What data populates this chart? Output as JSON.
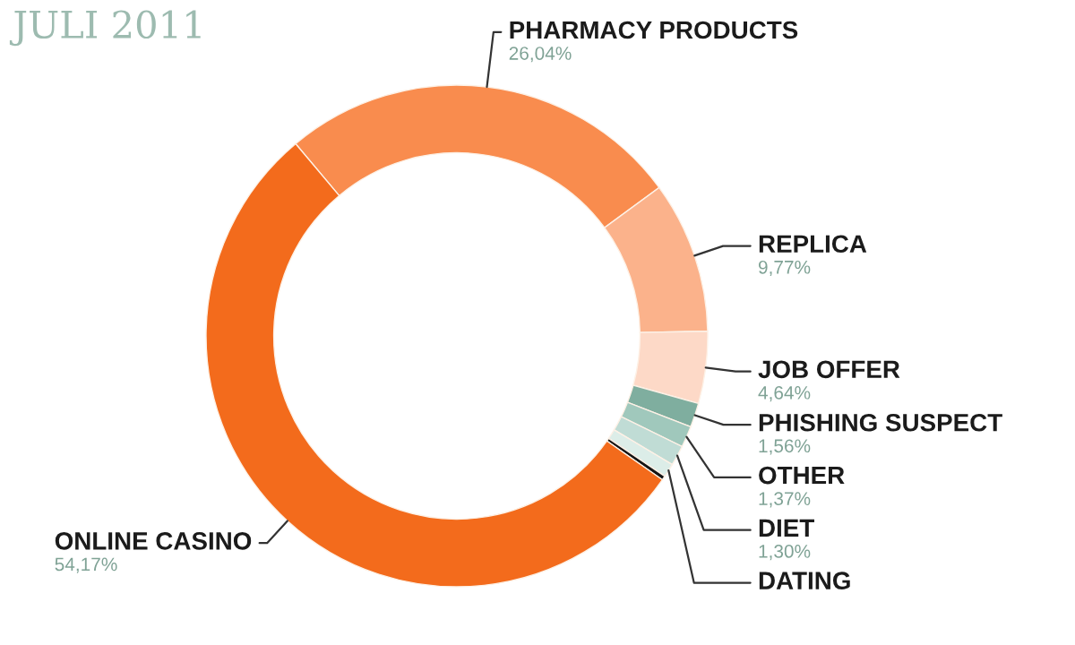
{
  "chart_data": {
    "type": "donut",
    "title": "JULI 2011",
    "categories": [
      "PHARMACY PRODUCTS",
      "REPLICA",
      "JOB OFFER",
      "PHISHING SUSPECT",
      "OTHER",
      "DIET",
      "DATING",
      null,
      "ONLINE CASINO"
    ],
    "values": [
      26.04,
      9.77,
      4.64,
      1.56,
      1.37,
      1.3,
      0.88,
      0.27,
      54.17
    ],
    "value_labels": [
      "26,04%",
      "9,77%",
      "4,64%",
      "1,56%",
      "1,37%",
      "1,30%",
      null,
      null,
      "54,17%"
    ],
    "colors": [
      "#f98c4e",
      "#fbb28b",
      "#fdd9c7",
      "#7fae9f",
      "#a0c8bc",
      "#c0dcd5",
      "#dcede8",
      "#141414",
      "#f36b1c"
    ]
  }
}
